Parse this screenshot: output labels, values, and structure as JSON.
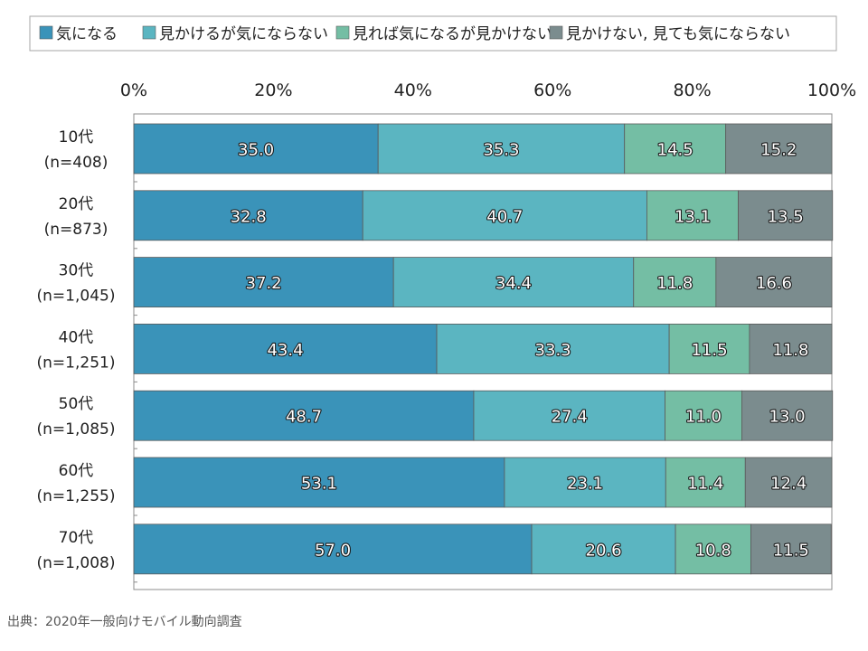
{
  "chart_data": {
    "type": "bar",
    "orientation": "horizontal",
    "stacked": true,
    "x_ticks": [
      "0%",
      "20%",
      "40%",
      "60%",
      "80%",
      "100%"
    ],
    "xlim": [
      0,
      100
    ],
    "legend_position": "top",
    "categories": [
      [
        "10代",
        "(n=408)"
      ],
      [
        "20代",
        "(n=873)"
      ],
      [
        "30代",
        "(n=1,045)"
      ],
      [
        "40代",
        "(n=1,251)"
      ],
      [
        "50代",
        "(n=1,085)"
      ],
      [
        "60代",
        "(n=1,255)"
      ],
      [
        "70代",
        "(n=1,008)"
      ]
    ],
    "series": [
      {
        "name": "気になる",
        "color": "#3a93b9",
        "values": [
          35.0,
          32.8,
          37.2,
          43.4,
          48.7,
          53.1,
          57.0
        ]
      },
      {
        "name": "見かけるが気にならない",
        "color": "#5bb5c1",
        "values": [
          35.3,
          40.7,
          34.4,
          33.3,
          27.4,
          23.1,
          20.6
        ]
      },
      {
        "name": "見れば気になるが見かけない",
        "color": "#74bea4",
        "values": [
          14.5,
          13.1,
          11.8,
          11.5,
          11.0,
          11.4,
          10.8
        ]
      },
      {
        "name": "見かけない, 見ても気にならない",
        "color": "#7b8c8e",
        "values": [
          15.2,
          13.5,
          16.6,
          11.8,
          13.0,
          12.4,
          11.5
        ]
      }
    ]
  },
  "source": "出典：2020年一般向けモバイル動向調査"
}
